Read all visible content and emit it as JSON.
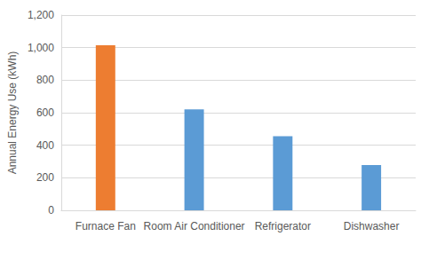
{
  "chart_data": {
    "type": "bar",
    "categories": [
      "Furnace Fan",
      "Room Air Conditioner",
      "Refrigerator",
      "Dishwasher"
    ],
    "values": [
      1015,
      620,
      455,
      278
    ],
    "colors": [
      "#ed7d31",
      "#5b9bd5",
      "#5b9bd5",
      "#5b9bd5"
    ],
    "ylabel": "Annual Energy Use (kWh)",
    "ylim": [
      0,
      1200
    ],
    "yticks": [
      0,
      200,
      400,
      600,
      800,
      {
        "value": 1000,
        "label": "1,000"
      },
      {
        "value": 1200,
        "label": "1,200"
      }
    ],
    "grid": true
  }
}
